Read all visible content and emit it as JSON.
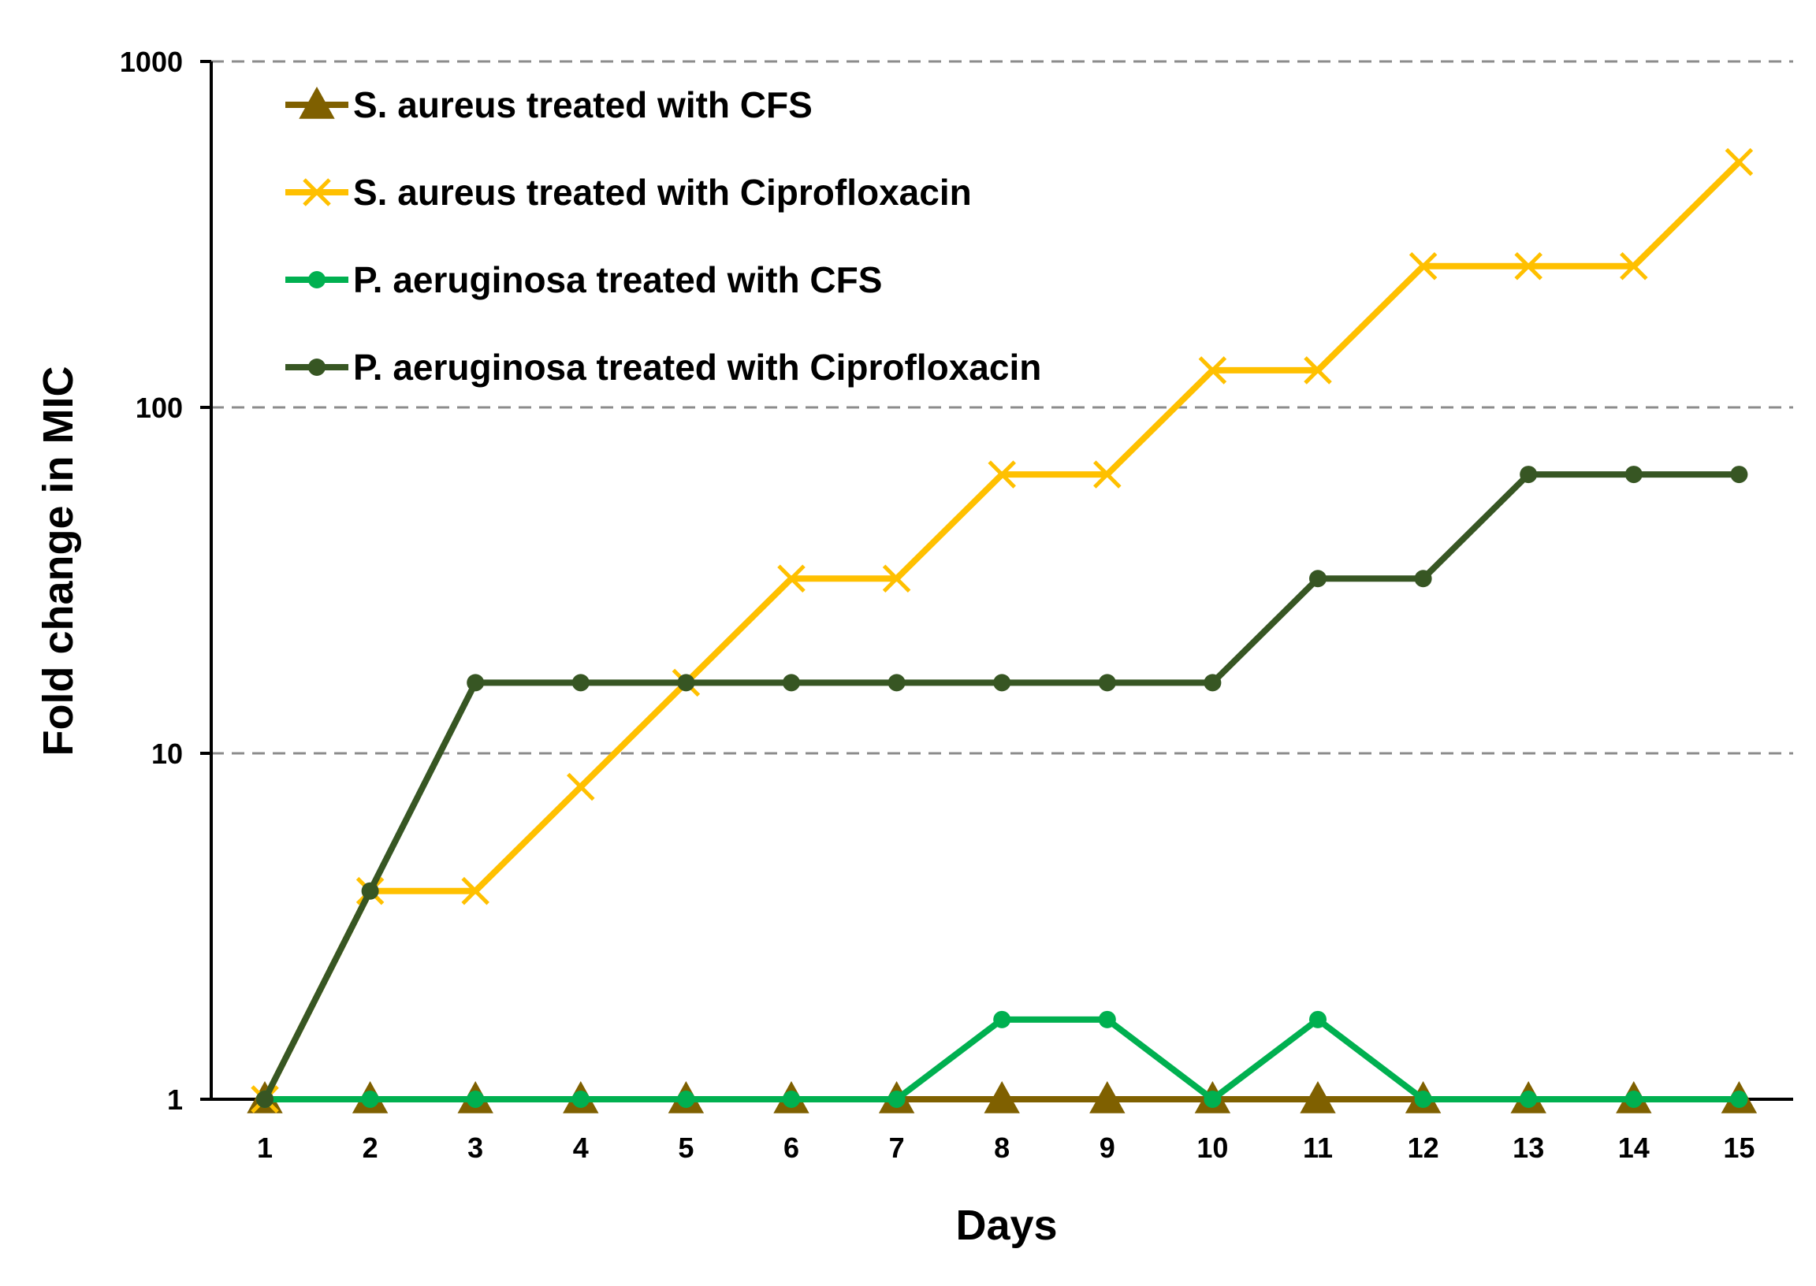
{
  "chart_data": {
    "type": "line",
    "title": "",
    "xlabel": "Days",
    "ylabel": "Fold change in MIC",
    "yscale": "log",
    "ylim": [
      1,
      1000
    ],
    "y_ticks": [
      "1",
      "10",
      "100",
      "1000"
    ],
    "y_gridlines": "dashed",
    "legend_position": "top-left",
    "categories": [
      "1",
      "2",
      "3",
      "4",
      "5",
      "6",
      "7",
      "8",
      "9",
      "10",
      "11",
      "12",
      "13",
      "14",
      "15"
    ],
    "series": [
      {
        "name": "S. aureus treated with CFS",
        "color": "#7F6000",
        "marker": "triangle",
        "values": [
          1,
          1,
          1,
          1,
          1,
          1,
          1,
          1,
          1,
          1,
          1,
          1,
          1,
          1,
          1
        ]
      },
      {
        "name": "S. aureus treated with Ciprofloxacin",
        "color": "#FFC000",
        "marker": "x",
        "values": [
          1,
          4,
          4,
          8,
          16,
          32,
          32,
          64,
          64,
          128,
          128,
          256,
          256,
          256,
          512
        ]
      },
      {
        "name": "P. aeruginosa treated with CFS",
        "color": "#00B050",
        "marker": "circle",
        "values": [
          1,
          1,
          1,
          1,
          1,
          1,
          1,
          1.7,
          1.7,
          1,
          1.7,
          1,
          1,
          1,
          1
        ]
      },
      {
        "name": "P. aeruginosa treated with Ciprofloxacin",
        "color": "#375623",
        "marker": "circle",
        "values": [
          1,
          4,
          16,
          16,
          16,
          16,
          16,
          16,
          16,
          16,
          32,
          32,
          64,
          64,
          64
        ]
      }
    ]
  }
}
